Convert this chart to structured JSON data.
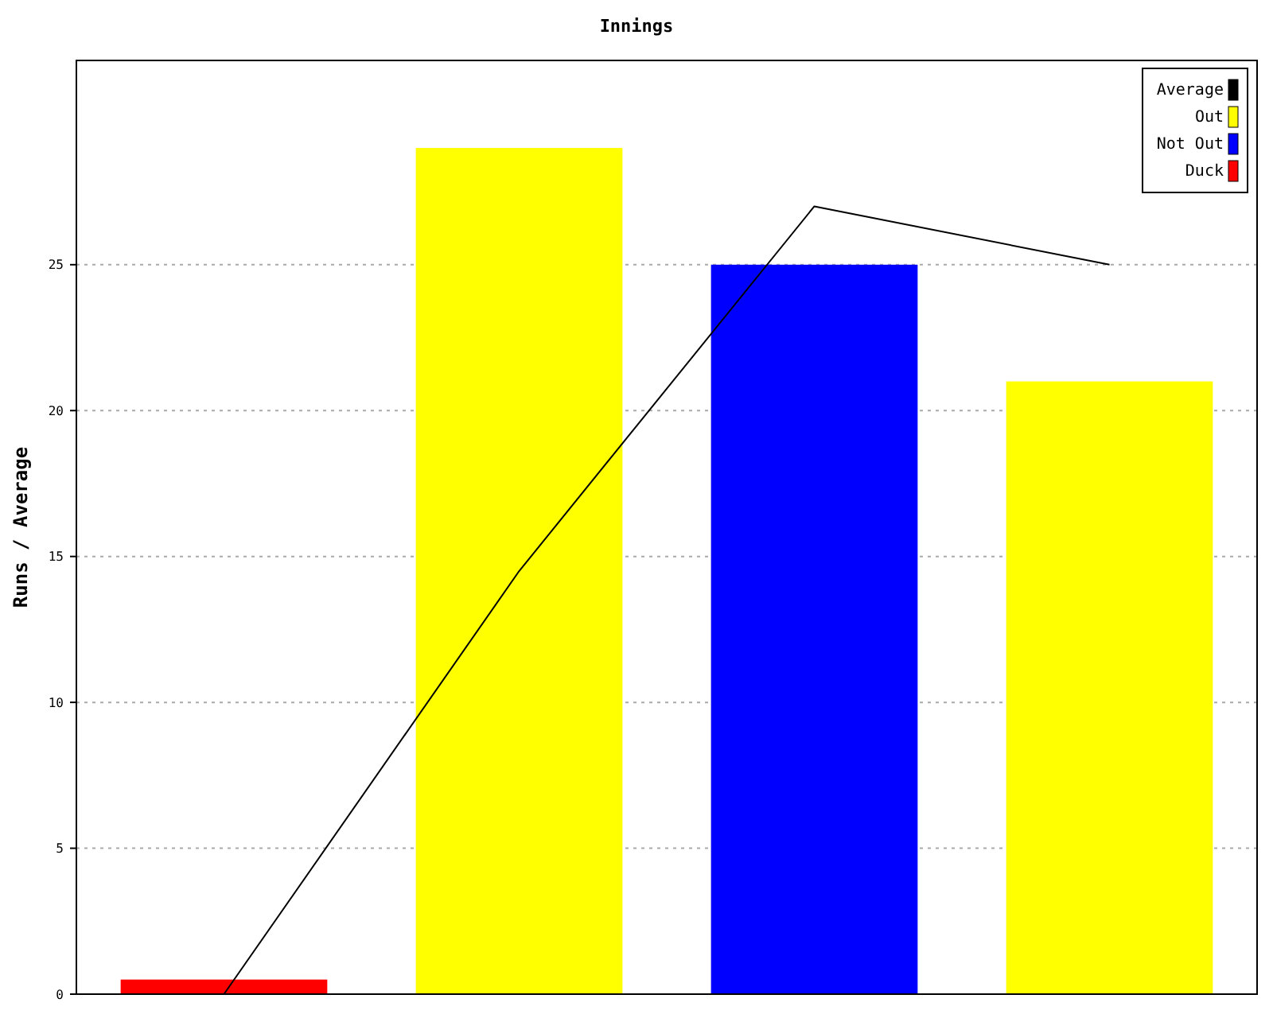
{
  "chart_data": {
    "type": "bar",
    "title": "Innings",
    "ylabel": "Runs / Average",
    "categories": [
      null,
      null,
      null,
      null
    ],
    "stacked": true,
    "series": [
      {
        "name": "Average",
        "type": "line",
        "color": "#000000",
        "values": [
          0,
          14.5,
          27,
          25
        ]
      },
      {
        "name": "Out",
        "color": "#ffff00",
        "values": [
          null,
          29,
          null,
          21
        ]
      },
      {
        "name": "Not Out",
        "color": "#0000ff",
        "values": [
          null,
          null,
          25,
          null
        ]
      },
      {
        "name": "Duck",
        "color": "#ff0000",
        "values": [
          0.5,
          null,
          null,
          null
        ]
      }
    ],
    "ylim": [
      0,
      32
    ],
    "yticks": [
      0,
      5,
      10,
      15,
      20,
      25
    ],
    "grid": "y",
    "legend": "top right"
  }
}
